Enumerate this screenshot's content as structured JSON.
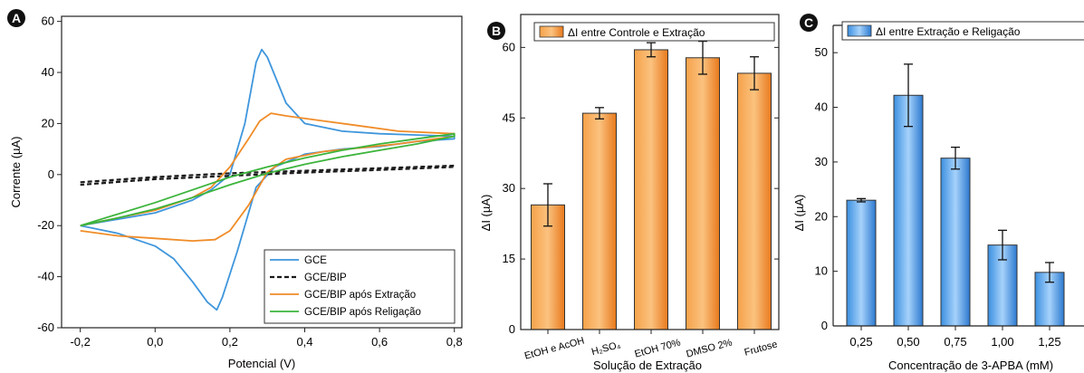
{
  "chart_data": [
    {
      "panel_letter": "A",
      "type": "line",
      "xlabel": "Potencial (V)",
      "ylabel": "Corrente (µA)",
      "xlim": [
        -0.25,
        0.82
      ],
      "ylim": [
        -60,
        62
      ],
      "x_ticks": [
        -0.2,
        0.0,
        0.2,
        0.4,
        0.6,
        0.8
      ],
      "x_tick_labels": [
        "-0,2",
        "0,0",
        "0,2",
        "0,4",
        "0,6",
        "0,8"
      ],
      "y_ticks": [
        -60,
        -40,
        -20,
        0,
        20,
        40,
        60
      ],
      "y_tick_labels": [
        "-60",
        "-40",
        "-20",
        "0",
        "20",
        "40",
        "60"
      ],
      "legend_position": "bottom-right",
      "series": [
        {
          "name": "GCE",
          "color": "#3f96dc",
          "dash": "solid",
          "points": [
            [
              -0.2,
              -20
            ],
            [
              0.0,
              -15
            ],
            [
              0.1,
              -10
            ],
            [
              0.15,
              -6
            ],
            [
              0.2,
              0
            ],
            [
              0.24,
              20
            ],
            [
              0.27,
              44
            ],
            [
              0.285,
              49
            ],
            [
              0.3,
              46
            ],
            [
              0.35,
              28
            ],
            [
              0.4,
              20
            ],
            [
              0.5,
              17
            ],
            [
              0.6,
              16
            ],
            [
              0.7,
              15.5
            ],
            [
              0.8,
              15
            ],
            [
              0.8,
              14
            ],
            [
              0.7,
              13
            ],
            [
              0.6,
              11
            ],
            [
              0.5,
              10
            ],
            [
              0.4,
              8
            ],
            [
              0.32,
              3
            ],
            [
              0.27,
              -5
            ],
            [
              0.22,
              -30
            ],
            [
              0.18,
              -48
            ],
            [
              0.165,
              -53
            ],
            [
              0.14,
              -50
            ],
            [
              0.1,
              -42
            ],
            [
              0.05,
              -33
            ],
            [
              0.0,
              -28
            ],
            [
              -0.1,
              -23
            ],
            [
              -0.2,
              -20
            ]
          ]
        },
        {
          "name": "GCE/BIP",
          "color": "#1a1a1a",
          "dash": "dashed",
          "points": [
            [
              -0.2,
              -3
            ],
            [
              0.0,
              -1
            ],
            [
              0.2,
              0.5
            ],
            [
              0.4,
              1.5
            ],
            [
              0.6,
              2.5
            ],
            [
              0.8,
              3.5
            ],
            [
              0.8,
              3
            ],
            [
              0.6,
              1.8
            ],
            [
              0.4,
              0.8
            ],
            [
              0.2,
              -0.5
            ],
            [
              0.0,
              -1.8
            ],
            [
              -0.2,
              -4
            ]
          ]
        },
        {
          "name": "GCE/BIP após Extração",
          "color": "#f08c28",
          "dash": "solid",
          "points": [
            [
              -0.2,
              -20
            ],
            [
              0.0,
              -14
            ],
            [
              0.1,
              -9
            ],
            [
              0.15,
              -5
            ],
            [
              0.2,
              3
            ],
            [
              0.25,
              14
            ],
            [
              0.28,
              21
            ],
            [
              0.31,
              24
            ],
            [
              0.35,
              23
            ],
            [
              0.45,
              21
            ],
            [
              0.55,
              19
            ],
            [
              0.65,
              17
            ],
            [
              0.8,
              16
            ],
            [
              0.8,
              15
            ],
            [
              0.65,
              12
            ],
            [
              0.55,
              10.5
            ],
            [
              0.45,
              9
            ],
            [
              0.35,
              6
            ],
            [
              0.3,
              1
            ],
            [
              0.25,
              -12
            ],
            [
              0.2,
              -22
            ],
            [
              0.16,
              -25.5
            ],
            [
              0.1,
              -26
            ],
            [
              0.0,
              -25
            ],
            [
              -0.1,
              -24
            ],
            [
              -0.2,
              -22
            ]
          ]
        },
        {
          "name": "GCE/BIP após Religação",
          "color": "#3cb43c",
          "dash": "solid",
          "points": [
            [
              -0.2,
              -20
            ],
            [
              0.0,
              -11
            ],
            [
              0.1,
              -6
            ],
            [
              0.2,
              -1
            ],
            [
              0.3,
              3
            ],
            [
              0.4,
              6.5
            ],
            [
              0.5,
              9.5
            ],
            [
              0.6,
              12
            ],
            [
              0.7,
              14
            ],
            [
              0.8,
              16
            ],
            [
              0.8,
              15
            ],
            [
              0.7,
              12
            ],
            [
              0.6,
              9.5
            ],
            [
              0.5,
              7
            ],
            [
              0.4,
              4
            ],
            [
              0.3,
              0.5
            ],
            [
              0.2,
              -4
            ],
            [
              0.1,
              -9
            ],
            [
              0.0,
              -13.5
            ],
            [
              -0.1,
              -17
            ],
            [
              -0.2,
              -20
            ]
          ]
        }
      ]
    },
    {
      "panel_letter": "B",
      "type": "bar",
      "xlabel": "Solução de Extração",
      "ylabel": "ΔI (µA)",
      "ylim": [
        0,
        67
      ],
      "y_ticks": [
        0,
        15,
        30,
        45,
        60
      ],
      "y_tick_labels": [
        "0",
        "15",
        "30",
        "45",
        "60"
      ],
      "legend_position": "top",
      "color": "#f08c28",
      "categories": [
        "EtOH e AcOH",
        "H₂SO₄",
        "EtOH 70%",
        "DMSO 2%",
        "Frutose"
      ],
      "series": [
        {
          "name": "ΔI entre Controle e Extração",
          "values": [
            26.5,
            46.0,
            59.5,
            57.8,
            54.5
          ],
          "errors": [
            4.5,
            1.2,
            1.5,
            3.5,
            3.5
          ]
        }
      ]
    },
    {
      "panel_letter": "C",
      "type": "bar",
      "xlabel": "Concentração de 3-APBA (mM)",
      "ylabel": "ΔI (µA)",
      "ylim": [
        0,
        55
      ],
      "y_ticks": [
        0,
        10,
        20,
        30,
        40,
        50
      ],
      "y_tick_labels": [
        "0",
        "10",
        "20",
        "30",
        "40",
        "50"
      ],
      "legend_position": "top",
      "color": "#3f96dc",
      "categories": [
        "0,25",
        "0,50",
        "0,75",
        "1,00",
        "1,25"
      ],
      "series": [
        {
          "name": "ΔI entre Extração e Religação",
          "values": [
            23.0,
            42.2,
            30.7,
            14.8,
            9.8
          ],
          "errors": [
            0.3,
            5.7,
            2.0,
            2.7,
            1.8
          ]
        }
      ]
    }
  ]
}
